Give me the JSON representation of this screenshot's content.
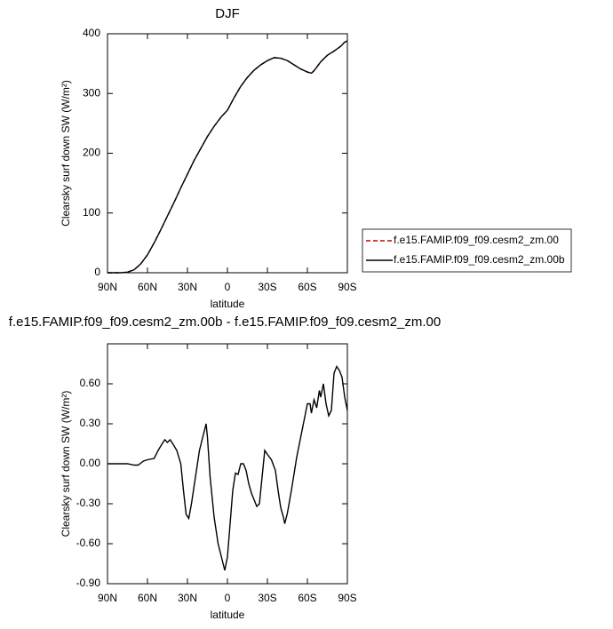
{
  "chart_data": [
    {
      "type": "line",
      "title": "DJF",
      "x_label": "latitude",
      "y_label": "Clearsky surf down SW (W/m²)",
      "xlim": [
        90,
        -90
      ],
      "xticks": [
        {
          "value": 90,
          "label": "90N"
        },
        {
          "value": 60,
          "label": "60N"
        },
        {
          "value": 30,
          "label": "30N"
        },
        0,
        {
          "value": -30,
          "label": "30S"
        },
        {
          "value": -60,
          "label": "60S"
        },
        {
          "value": -90,
          "label": "90S"
        }
      ],
      "ylim": [
        0,
        400
      ],
      "yticks": [
        0,
        100,
        200,
        300,
        400
      ],
      "legend": "right",
      "x": [
        90,
        80,
        75,
        70,
        65,
        60,
        55,
        50,
        45,
        40,
        35,
        30,
        25,
        20,
        15,
        10,
        5,
        0,
        -5,
        -10,
        -15,
        -20,
        -25,
        -30,
        -35,
        -40,
        -45,
        -50,
        -55,
        -60,
        -63,
        -65,
        -70,
        -75,
        -80,
        -85,
        -88,
        -90
      ],
      "series": [
        {
          "name": "f.e15.FAMIP.f09_f09.cesm2_zm.00",
          "color": "#cc0000",
          "line_style": "dashed",
          "values": [
            0,
            0,
            1,
            5,
            15,
            30,
            50,
            72,
            95,
            118,
            142,
            165,
            188,
            208,
            228,
            245,
            260,
            272,
            293,
            312,
            327,
            339,
            348,
            355,
            360,
            359,
            355,
            348,
            341,
            336,
            334,
            338,
            353,
            364,
            371,
            379,
            386,
            388
          ]
        },
        {
          "name": "f.e15.FAMIP.f09_f09.cesm2_zm.00b",
          "color": "#000000",
          "line_style": "solid",
          "values": [
            0,
            0,
            1,
            5,
            15,
            30,
            50,
            72,
            95,
            118,
            142,
            165,
            188,
            208,
            228,
            245,
            260,
            272,
            293,
            312,
            327,
            339,
            348,
            355,
            360,
            359,
            355,
            348,
            341,
            336,
            334,
            338,
            353,
            364,
            371,
            379,
            386,
            388
          ]
        }
      ]
    },
    {
      "type": "line",
      "title": "f.e15.FAMIP.f09_f09.cesm2_zm.00b - f.e15.FAMIP.f09_f09.cesm2_zm.00",
      "x_label": "latitude",
      "y_label": "Clearsky surf down SW (W/m²)",
      "xlim": [
        90,
        -90
      ],
      "xticks": [
        {
          "value": 90,
          "label": "90N"
        },
        {
          "value": 60,
          "label": "60N"
        },
        {
          "value": 30,
          "label": "30N"
        },
        0,
        {
          "value": -30,
          "label": "30S"
        },
        {
          "value": -60,
          "label": "60S"
        },
        {
          "value": -90,
          "label": "90S"
        }
      ],
      "ylim": [
        -0.9,
        0.9
      ],
      "yticks": [
        {
          "value": -0.9,
          "label": "-0.90"
        },
        {
          "value": -0.6,
          "label": "-0.60"
        },
        {
          "value": -0.3,
          "label": "-0.30"
        },
        {
          "value": 0,
          "label": "0.00"
        },
        {
          "value": 0.3,
          "label": "0.30"
        },
        {
          "value": 0.6,
          "label": "0.60"
        }
      ],
      "x": [
        90,
        75,
        70,
        67,
        63,
        60,
        55,
        52,
        49,
        47,
        45,
        43,
        41,
        38,
        35,
        33,
        31,
        29,
        27,
        24,
        21,
        18,
        16,
        15,
        13,
        10,
        7,
        4,
        2,
        0,
        -2,
        -4,
        -6,
        -8,
        -10,
        -12,
        -14,
        -16,
        -18,
        -20,
        -22,
        -24,
        -26,
        -28,
        -30,
        -33,
        -36,
        -38,
        -40,
        -42,
        -43,
        -45,
        -48,
        -52,
        -55,
        -58,
        -60,
        -62,
        -63,
        -65,
        -67,
        -69,
        -70,
        -72,
        -74,
        -76,
        -78,
        -80,
        -82,
        -84,
        -86,
        -88,
        -90
      ],
      "series": [
        {
          "color": "#000000",
          "line_style": "solid",
          "values": [
            0,
            0,
            -0.01,
            -0.01,
            0.02,
            0.03,
            0.04,
            0.1,
            0.15,
            0.18,
            0.16,
            0.18,
            0.15,
            0.1,
            0.0,
            -0.2,
            -0.38,
            -0.41,
            -0.3,
            -0.1,
            0.1,
            0.22,
            0.3,
            0.2,
            -0.1,
            -0.4,
            -0.6,
            -0.72,
            -0.8,
            -0.7,
            -0.45,
            -0.2,
            -0.07,
            -0.08,
            0.0,
            0.0,
            -0.05,
            -0.15,
            -0.22,
            -0.27,
            -0.32,
            -0.3,
            -0.1,
            0.1,
            0.07,
            0.03,
            -0.05,
            -0.2,
            -0.33,
            -0.4,
            -0.45,
            -0.37,
            -0.2,
            0.05,
            0.2,
            0.35,
            0.45,
            0.45,
            0.38,
            0.48,
            0.42,
            0.55,
            0.5,
            0.6,
            0.45,
            0.36,
            0.4,
            0.68,
            0.73,
            0.7,
            0.65,
            0.5,
            0.4
          ]
        }
      ]
    }
  ]
}
